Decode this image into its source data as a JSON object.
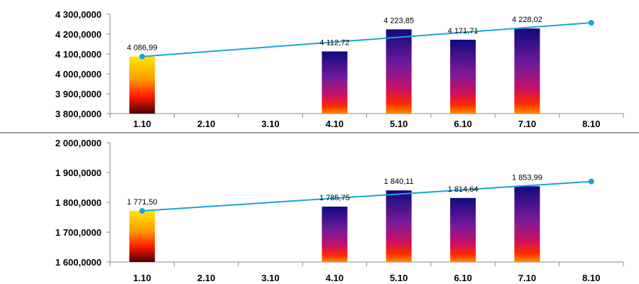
{
  "chart_data": [
    {
      "type": "bar",
      "categories": [
        "1.10",
        "2.10",
        "3.10",
        "4.10",
        "5.10",
        "6.10",
        "7.10",
        "8.10"
      ],
      "series": [
        {
          "values": [
            4086.99,
            null,
            null,
            4112.72,
            4223.85,
            4171.71,
            4228.02,
            null
          ]
        },
        {
          "type": "line",
          "values": [
            4086.99,
            null,
            null,
            null,
            null,
            null,
            null,
            4257
          ]
        }
      ],
      "data_labels": [
        "4 086,99",
        "",
        "",
        "4 112,72",
        "4 223,85",
        "4 171,71",
        "4 228,02",
        ""
      ],
      "y_ticks": [
        {
          "value": 3800,
          "label": "3 800,0000"
        },
        {
          "value": 3900,
          "label": "3 900,0000"
        },
        {
          "value": 4000,
          "label": "4 000,0000"
        },
        {
          "value": 4100,
          "label": "4 100,0000"
        },
        {
          "value": 4200,
          "label": "4 200,0000"
        },
        {
          "value": 4300,
          "label": "4 300,0000"
        }
      ],
      "ylim": [
        3800,
        4300
      ],
      "grid": false,
      "title": "",
      "xlabel": "",
      "ylabel": ""
    },
    {
      "type": "bar",
      "categories": [
        "1.10",
        "2.10",
        "3.10",
        "4.10",
        "5.10",
        "6.10",
        "7.10",
        "8.10"
      ],
      "series": [
        {
          "values": [
            1771.5,
            null,
            null,
            1785.75,
            1840.11,
            1814.64,
            1853.99,
            null
          ]
        },
        {
          "type": "line",
          "values": [
            1771.5,
            null,
            null,
            null,
            null,
            null,
            null,
            1870
          ]
        }
      ],
      "data_labels": [
        "1 771,50",
        "",
        "",
        "1 785,75",
        "1 840,11",
        "1 814,64",
        "1 853,99",
        ""
      ],
      "y_ticks": [
        {
          "value": 1600,
          "label": "1 600,0000"
        },
        {
          "value": 1700,
          "label": "1 700,0000"
        },
        {
          "value": 1800,
          "label": "1 800,0000"
        },
        {
          "value": 1900,
          "label": "1 900,0000"
        },
        {
          "value": 2000,
          "label": "2 000,0000"
        }
      ],
      "ylim": [
        1600,
        2000
      ],
      "grid": false,
      "title": "",
      "xlabel": "",
      "ylabel": ""
    }
  ],
  "colors": {
    "trend_line": "#1aa3d9",
    "first_bar": [
      "#ffe600",
      "#ff9a00",
      "#ff1a00",
      "#4a0000"
    ],
    "other_bars": [
      "#100a80",
      "#7a1a9a",
      "#cc1060",
      "#ff2a00",
      "#ff8a00"
    ],
    "axis": "#888888",
    "separator": "#666666"
  }
}
